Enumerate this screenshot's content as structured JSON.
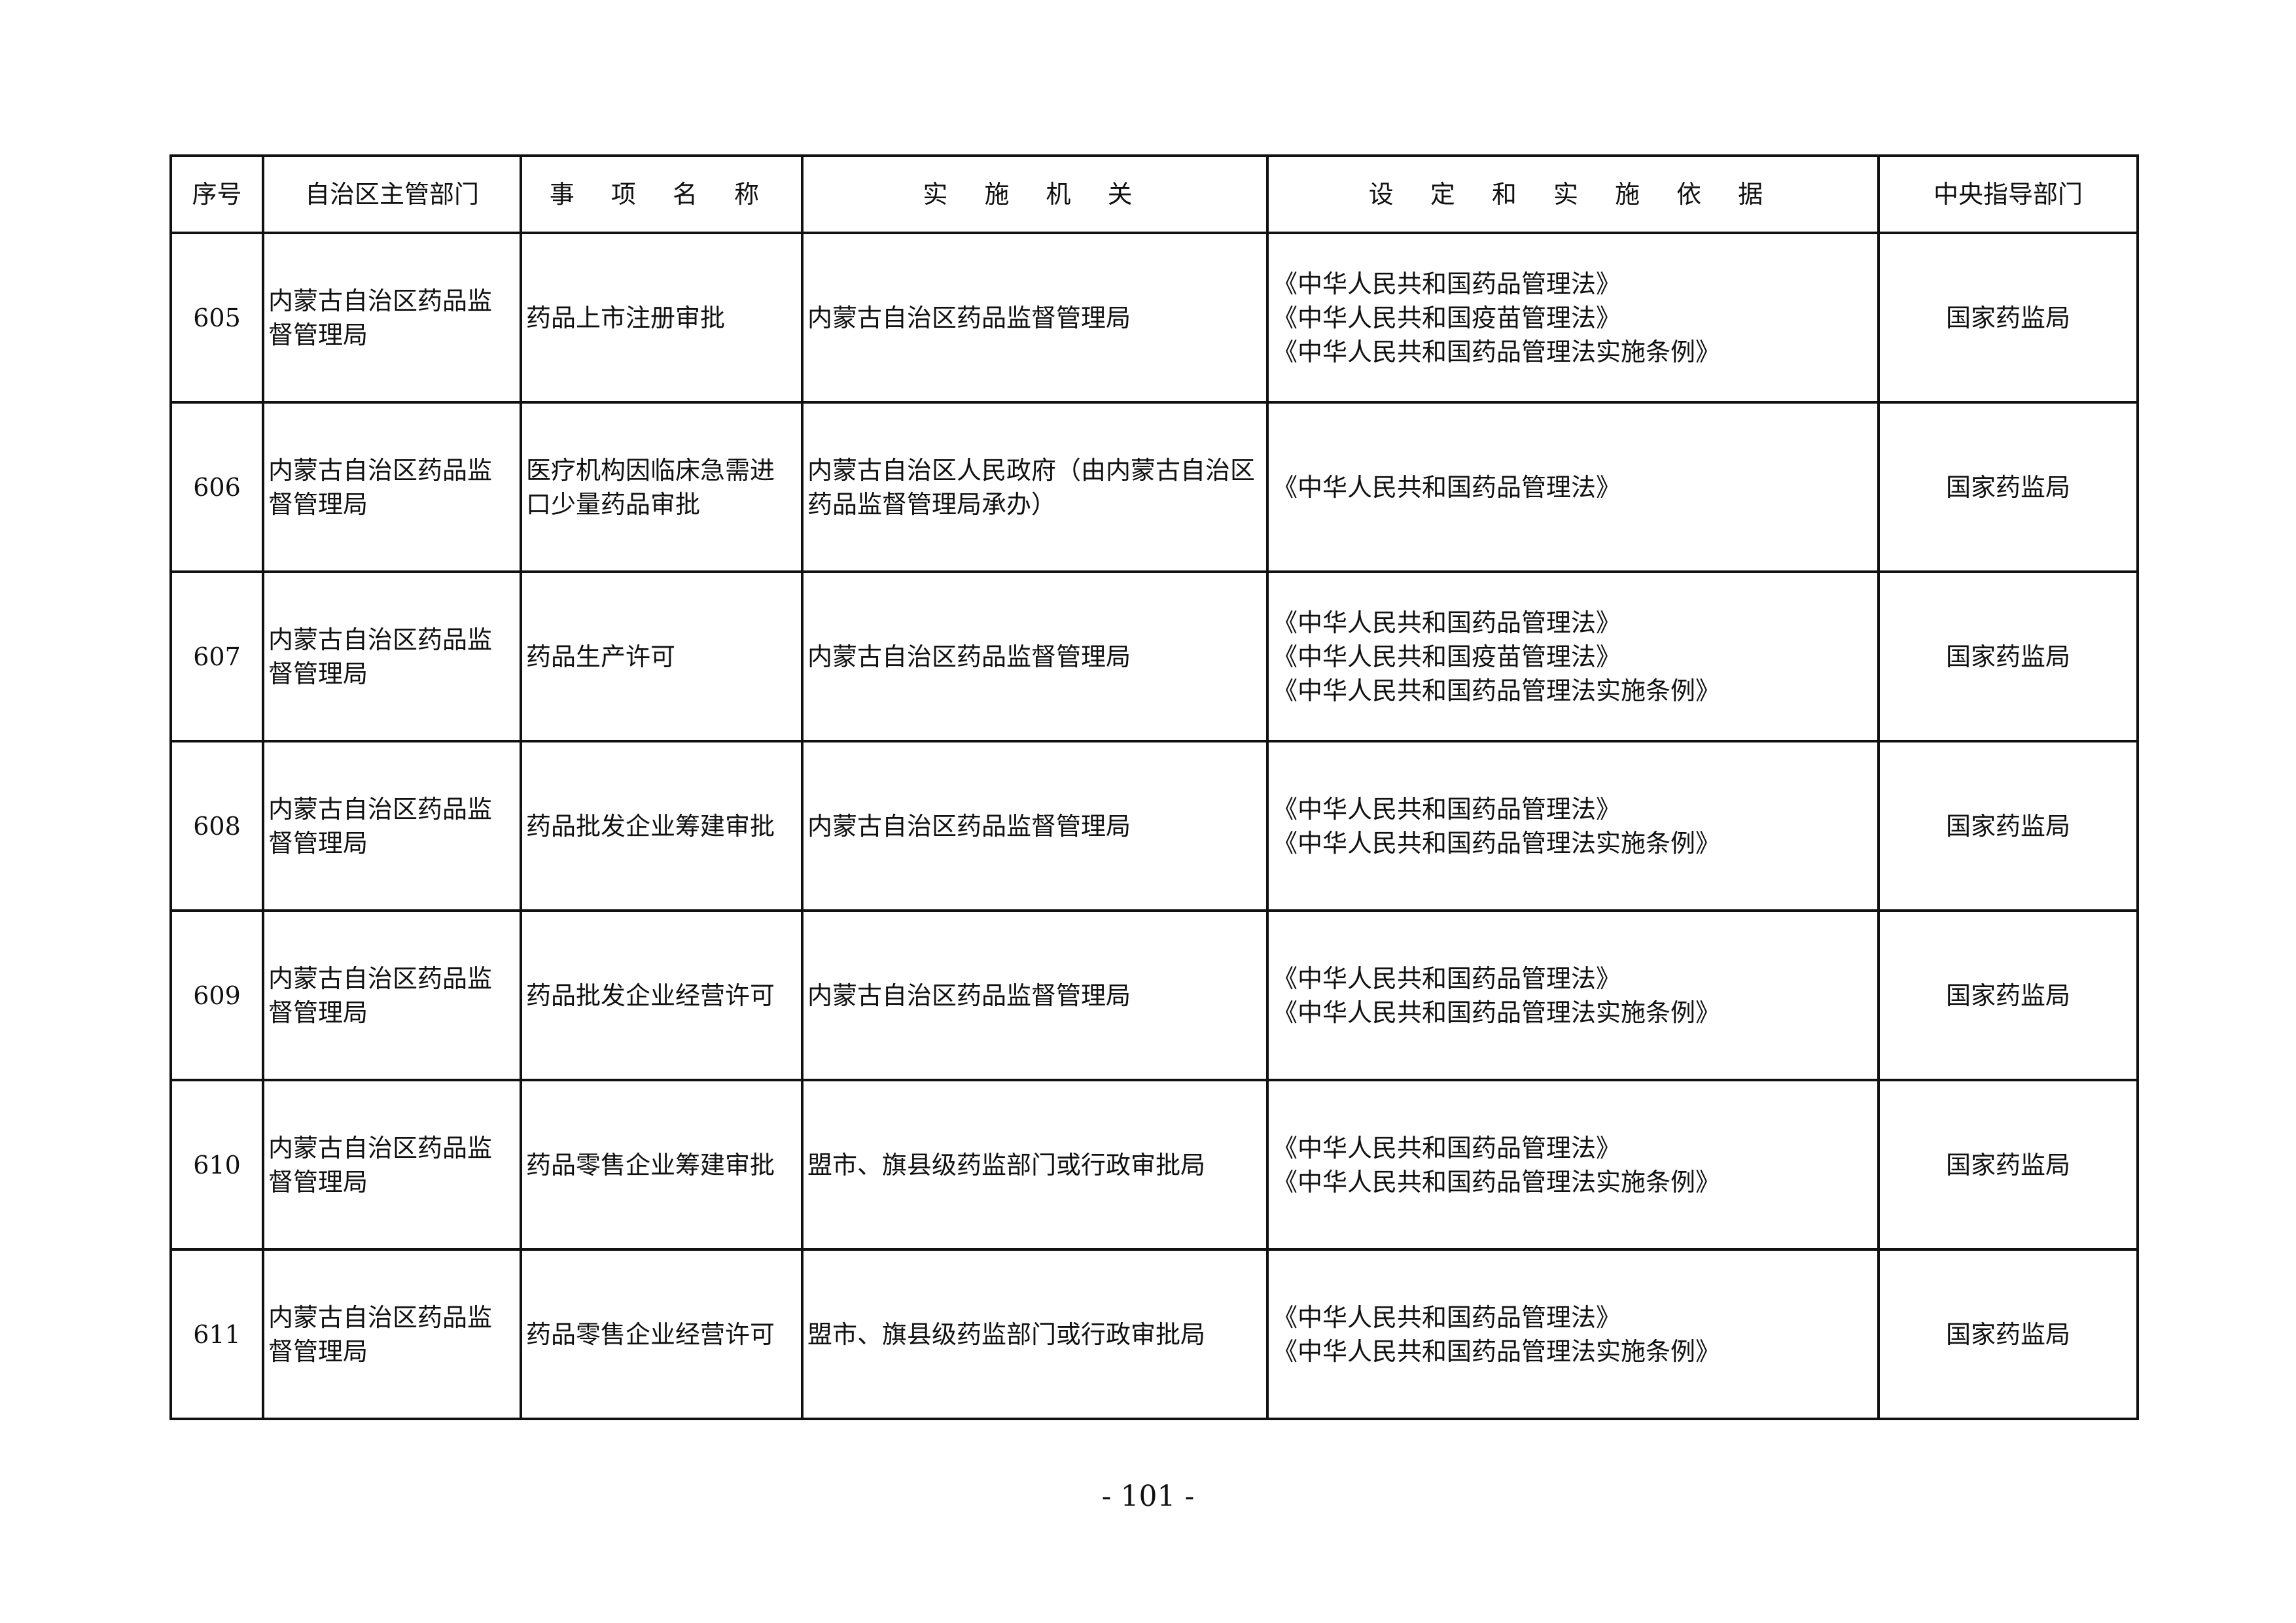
{
  "headers": [
    "序号",
    "自治区主管部门",
    "事 项 名 称",
    "实 施 机 关",
    "设 定 和 实 施 依 据",
    "中央指导部门"
  ],
  "rows": [
    {
      "seq": "605",
      "dept": "内蒙古自治区药品监督管理局",
      "item": "药品上市注册审批",
      "agency": "内蒙古自治区药品监督管理局",
      "basis": [
        "《中华人民共和国药品管理法》",
        "《中华人民共和国疫苗管理法》",
        "《中华人民共和国药品管理法实施条例》"
      ],
      "central": "国家药监局"
    },
    {
      "seq": "606",
      "dept": "内蒙古自治区药品监督管理局",
      "item": "医疗机构因临床急需进口少量药品审批",
      "agency": "内蒙古自治区人民政府（由内蒙古自治区药品监督管理局承办）",
      "basis": [
        "《中华人民共和国药品管理法》"
      ],
      "central": "国家药监局"
    },
    {
      "seq": "607",
      "dept": "内蒙古自治区药品监督管理局",
      "item": "药品生产许可",
      "agency": "内蒙古自治区药品监督管理局",
      "basis": [
        "《中华人民共和国药品管理法》",
        "《中华人民共和国疫苗管理法》",
        "《中华人民共和国药品管理法实施条例》"
      ],
      "central": "国家药监局"
    },
    {
      "seq": "608",
      "dept": "内蒙古自治区药品监督管理局",
      "item": "药品批发企业筹建审批",
      "agency": "内蒙古自治区药品监督管理局",
      "basis": [
        "《中华人民共和国药品管理法》",
        "《中华人民共和国药品管理法实施条例》"
      ],
      "central": "国家药监局"
    },
    {
      "seq": "609",
      "dept": "内蒙古自治区药品监督管理局",
      "item": "药品批发企业经营许可",
      "agency": "内蒙古自治区药品监督管理局",
      "basis": [
        "《中华人民共和国药品管理法》",
        "《中华人民共和国药品管理法实施条例》"
      ],
      "central": "国家药监局"
    },
    {
      "seq": "610",
      "dept": "内蒙古自治区药品监督管理局",
      "item": "药品零售企业筹建审批",
      "agency": "盟市、旗县级药监部门或行政审批局",
      "basis": [
        "《中华人民共和国药品管理法》",
        "《中华人民共和国药品管理法实施条例》"
      ],
      "central": "国家药监局"
    },
    {
      "seq": "611",
      "dept": "内蒙古自治区药品监督管理局",
      "item": "药品零售企业经营许可",
      "agency": "盟市、旗县级药监部门或行政审批局",
      "basis": [
        "《中华人民共和国药品管理法》",
        "《中华人民共和国药品管理法实施条例》"
      ],
      "central": "国家药监局"
    }
  ],
  "page_number": "- 101 -"
}
